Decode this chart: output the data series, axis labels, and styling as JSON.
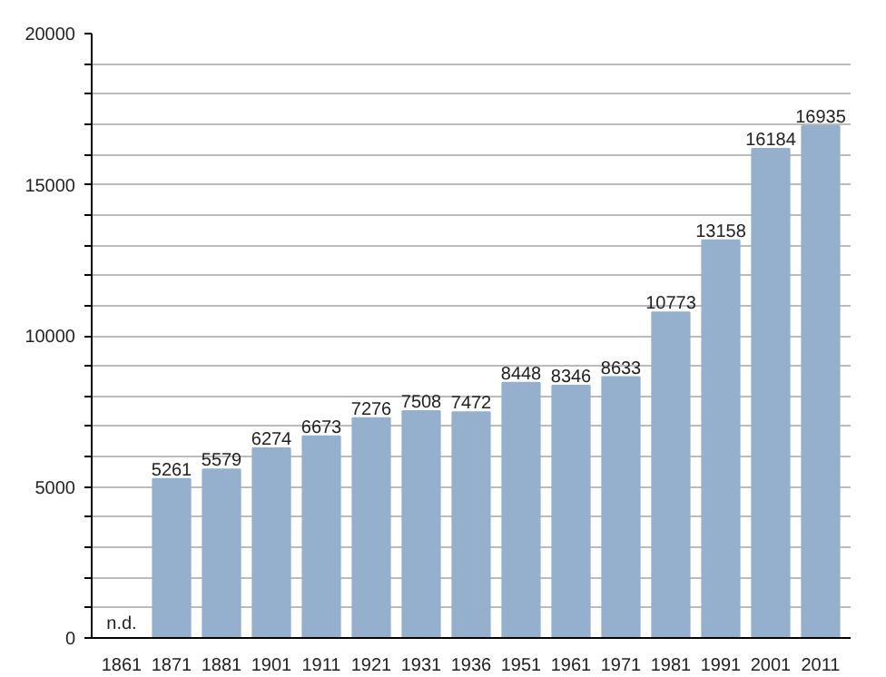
{
  "chart_data": {
    "type": "bar",
    "categories": [
      "1861",
      "1871",
      "1881",
      "1901",
      "1911",
      "1921",
      "1931",
      "1936",
      "1951",
      "1961",
      "1971",
      "1981",
      "1991",
      "2001",
      "2011"
    ],
    "values": [
      null,
      5261,
      5579,
      6274,
      6673,
      7276,
      7508,
      7472,
      8448,
      8346,
      8633,
      10773,
      13158,
      16184,
      16935
    ],
    "value_labels": [
      "n.d.",
      "5261",
      "5579",
      "6274",
      "6673",
      "7276",
      "7508",
      "7472",
      "8448",
      "8346",
      "8633",
      "10773",
      "13158",
      "16184",
      "16935"
    ],
    "color": "#95b0cd",
    "ylim": [
      0,
      20000
    ],
    "yticks": [
      0,
      {
        "value": 1000,
        "label": null
      },
      {
        "value": 2000,
        "label": null
      },
      {
        "value": 3000,
        "label": null
      },
      {
        "value": 4000,
        "label": null
      },
      5000,
      {
        "value": 6000,
        "label": null
      },
      {
        "value": 7000,
        "label": null
      },
      {
        "value": 8000,
        "label": null
      },
      {
        "value": 9000,
        "label": null
      },
      10000,
      {
        "value": 11000,
        "label": null
      },
      {
        "value": 12000,
        "label": null
      },
      {
        "value": 13000,
        "label": null
      },
      {
        "value": 14000,
        "label": null
      },
      15000,
      {
        "value": 16000,
        "label": null
      },
      {
        "value": 17000,
        "label": null
      },
      {
        "value": 18000,
        "label": null
      },
      {
        "value": 19000,
        "label": null
      },
      20000
    ],
    "grid": "y"
  }
}
